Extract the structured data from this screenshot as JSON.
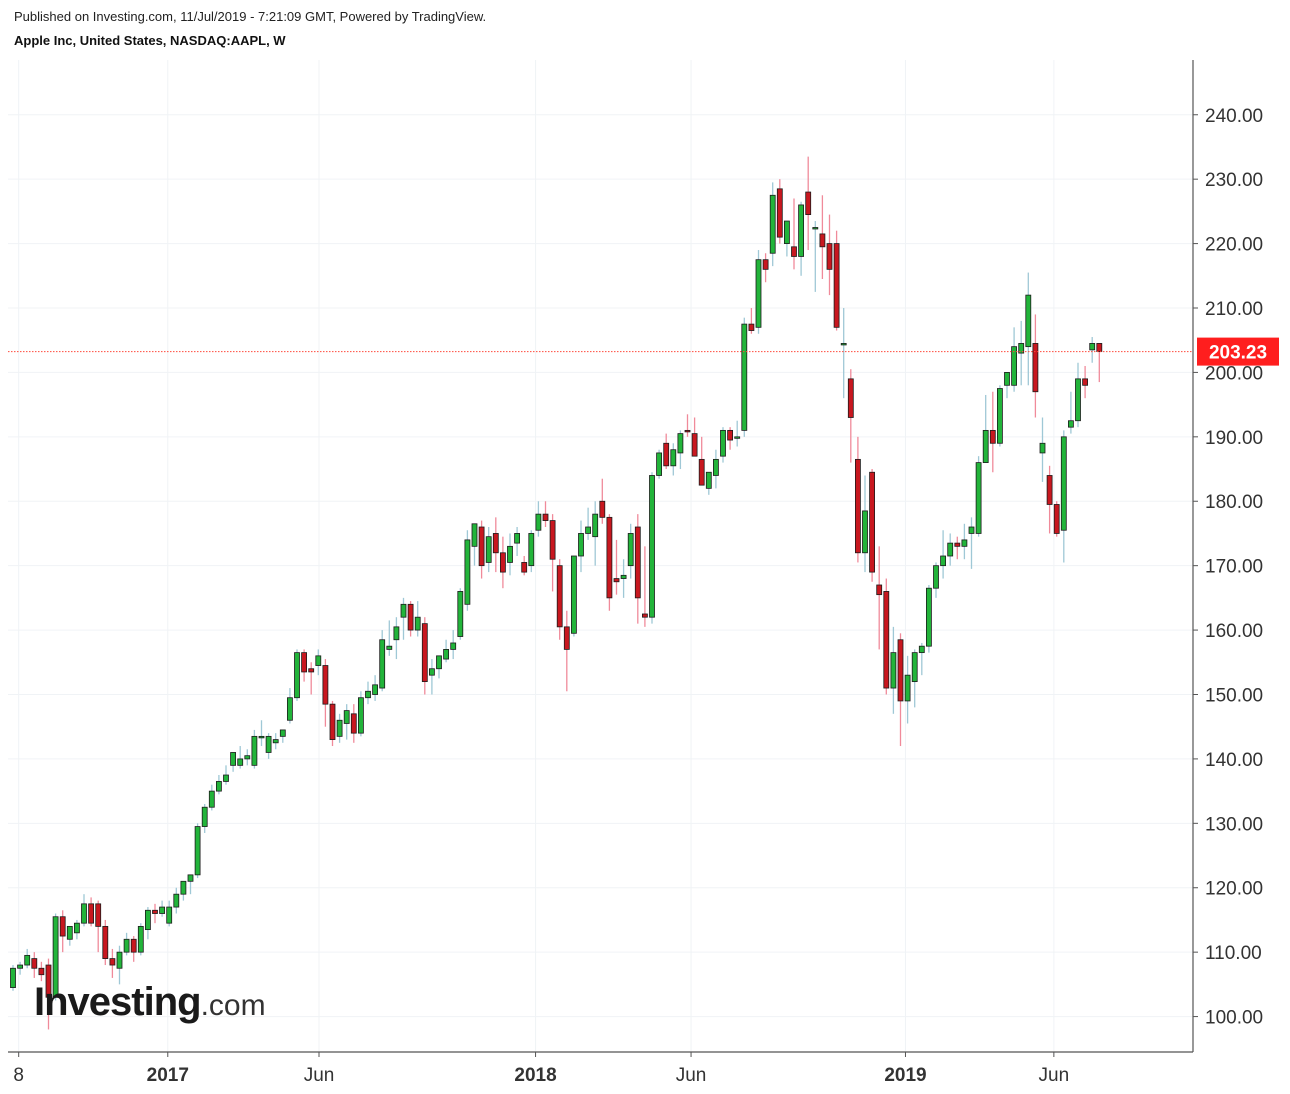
{
  "header": {
    "published": "Published on Investing.com, 11/Jul/2019 - 7:21:09 GMT, Powered by TradingView.",
    "instrument": "Apple Inc, United States, NASDAQ:AAPL, W"
  },
  "brand": {
    "main": "Investing",
    "suffix": ".com"
  },
  "chart_data": {
    "type": "candlestick",
    "timeframe": "W",
    "y_range": [
      94.5,
      248.5
    ],
    "y_ticks": [
      "100.00",
      "110.00",
      "120.00",
      "130.00",
      "140.00",
      "150.00",
      "160.00",
      "170.00",
      "180.00",
      "190.00",
      "200.00",
      "210.00",
      "220.00",
      "230.00",
      "240.00"
    ],
    "x_ticks": [
      {
        "label": "8",
        "bar": 0.8,
        "bold": false
      },
      {
        "label": "2017",
        "bar": 21.8,
        "bold": true
      },
      {
        "label": "Jun",
        "bar": 43.1,
        "bold": false
      },
      {
        "label": "2018",
        "bar": 73.6,
        "bold": true
      },
      {
        "label": "Jun",
        "bar": 95.5,
        "bold": false
      },
      {
        "label": "2019",
        "bar": 125.7,
        "bold": true
      },
      {
        "label": "Jun",
        "bar": 146.6,
        "bold": false
      }
    ],
    "last_price": {
      "value": 203.23,
      "label": "203.23"
    },
    "colors": {
      "up": "#22b43a",
      "down": "#c8171f",
      "up_wick": "#9fc8d6",
      "down_wick": "#f08a9a",
      "price_line": "#ff4a3c",
      "grid": "#f0f3f6"
    },
    "candles": [
      [
        104.5,
        108.0,
        104.0,
        107.5
      ],
      [
        107.5,
        108.5,
        106.5,
        108.0
      ],
      [
        108.0,
        110.5,
        107.5,
        109.5
      ],
      [
        109.0,
        110.0,
        106.0,
        107.5
      ],
      [
        107.5,
        108.5,
        105.5,
        106.5
      ],
      [
        108.0,
        109.0,
        98.0,
        103.0
      ],
      [
        103.0,
        116.0,
        102.5,
        115.5
      ],
      [
        115.5,
        116.5,
        110.0,
        112.5
      ],
      [
        112.0,
        114.0,
        111.0,
        114.0
      ],
      [
        113.0,
        115.0,
        112.0,
        114.5
      ],
      [
        114.5,
        119.0,
        114.0,
        117.5
      ],
      [
        117.5,
        118.5,
        114.0,
        114.5
      ],
      [
        117.5,
        118.0,
        110.0,
        114.0
      ],
      [
        114.0,
        115.0,
        108.0,
        109.0
      ],
      [
        109.0,
        110.5,
        106.0,
        108.0
      ],
      [
        107.5,
        111.0,
        105.0,
        110.0
      ],
      [
        110.0,
        113.0,
        109.5,
        112.0
      ],
      [
        112.0,
        112.5,
        108.5,
        110.0
      ],
      [
        110.0,
        114.5,
        109.5,
        114.0
      ],
      [
        113.5,
        117.0,
        112.0,
        116.5
      ],
      [
        116.5,
        117.5,
        114.5,
        116.0
      ],
      [
        116.0,
        118.0,
        115.5,
        117.0
      ],
      [
        114.5,
        118.0,
        114.0,
        117.0
      ],
      [
        117.0,
        120.0,
        116.0,
        119.0
      ],
      [
        119.0,
        121.0,
        118.0,
        121.0
      ],
      [
        121.0,
        122.0,
        119.0,
        122.0
      ],
      [
        122.0,
        130.0,
        121.5,
        129.5
      ],
      [
        129.5,
        133.0,
        128.5,
        132.5
      ],
      [
        132.5,
        136.0,
        132.0,
        135.0
      ],
      [
        135.0,
        137.5,
        134.5,
        136.5
      ],
      [
        136.5,
        139.0,
        136.0,
        137.5
      ],
      [
        139.0,
        140.5,
        138.0,
        141.0
      ],
      [
        139.0,
        142.0,
        138.5,
        140.0
      ],
      [
        140.0,
        141.5,
        139.0,
        140.5
      ],
      [
        139.0,
        144.5,
        138.5,
        143.5
      ],
      [
        143.5,
        146.0,
        142.0,
        143.5
      ],
      [
        141.0,
        144.0,
        140.0,
        143.5
      ],
      [
        142.5,
        144.0,
        141.5,
        143.0
      ],
      [
        143.5,
        144.5,
        142.5,
        144.5
      ],
      [
        146.0,
        151.0,
        145.5,
        149.5
      ],
      [
        149.5,
        157.0,
        149.0,
        156.5
      ],
      [
        156.5,
        157.0,
        152.0,
        153.5
      ],
      [
        154.0,
        155.0,
        150.0,
        153.5
      ],
      [
        154.5,
        157.0,
        153.0,
        156.0
      ],
      [
        154.5,
        155.5,
        145.0,
        148.5
      ],
      [
        148.5,
        149.0,
        142.0,
        143.0
      ],
      [
        143.5,
        147.0,
        142.5,
        146.0
      ],
      [
        145.5,
        148.5,
        143.0,
        147.5
      ],
      [
        147.0,
        148.5,
        142.5,
        144.0
      ],
      [
        144.0,
        150.5,
        143.5,
        149.5
      ],
      [
        149.5,
        152.0,
        148.5,
        150.5
      ],
      [
        150.0,
        153.0,
        149.0,
        151.5
      ],
      [
        151.0,
        160.0,
        150.5,
        158.5
      ],
      [
        157.0,
        161.5,
        156.0,
        157.5
      ],
      [
        158.5,
        162.0,
        155.5,
        160.5
      ],
      [
        162.0,
        165.0,
        158.5,
        164.0
      ],
      [
        164.0,
        164.5,
        159.0,
        160.0
      ],
      [
        160.0,
        164.5,
        159.0,
        162.0
      ],
      [
        161.0,
        162.0,
        150.0,
        152.0
      ],
      [
        153.0,
        155.5,
        150.0,
        154.0
      ],
      [
        154.0,
        156.0,
        152.5,
        156.0
      ],
      [
        155.5,
        158.5,
        155.0,
        157.0
      ],
      [
        157.0,
        160.0,
        155.5,
        158.0
      ],
      [
        159.0,
        166.5,
        158.5,
        166.0
      ],
      [
        164.0,
        175.5,
        163.0,
        174.0
      ],
      [
        173.0,
        176.0,
        170.0,
        176.5
      ],
      [
        176.0,
        177.0,
        168.0,
        170.0
      ],
      [
        170.5,
        176.0,
        169.0,
        174.5
      ],
      [
        175.0,
        177.5,
        169.0,
        172.0
      ],
      [
        172.0,
        174.5,
        166.5,
        169.0
      ],
      [
        170.5,
        175.0,
        168.5,
        173.0
      ],
      [
        173.5,
        176.0,
        171.5,
        175.0
      ],
      [
        170.5,
        171.5,
        168.5,
        169.0
      ],
      [
        170.0,
        175.5,
        169.0,
        175.0
      ],
      [
        175.5,
        180.0,
        174.5,
        178.0
      ],
      [
        178.0,
        180.0,
        176.0,
        177.0
      ],
      [
        177.0,
        178.0,
        166.0,
        171.0
      ],
      [
        170.0,
        171.0,
        158.5,
        160.5
      ],
      [
        160.5,
        163.0,
        150.5,
        157.0
      ],
      [
        159.5,
        171.5,
        159.0,
        171.5
      ],
      [
        171.5,
        177.0,
        169.0,
        175.0
      ],
      [
        175.0,
        179.0,
        174.0,
        176.0
      ],
      [
        174.5,
        180.0,
        170.0,
        178.0
      ],
      [
        180.0,
        183.5,
        176.5,
        177.5
      ],
      [
        177.5,
        178.0,
        163.0,
        165.0
      ],
      [
        168.0,
        174.0,
        165.5,
        167.5
      ],
      [
        168.0,
        171.0,
        165.0,
        168.5
      ],
      [
        170.0,
        176.5,
        168.0,
        175.0
      ],
      [
        176.0,
        178.0,
        161.0,
        165.0
      ],
      [
        162.5,
        173.0,
        160.5,
        162.0
      ],
      [
        162.0,
        184.5,
        161.0,
        184.0
      ],
      [
        184.0,
        188.0,
        183.5,
        187.5
      ],
      [
        189.0,
        190.5,
        185.0,
        185.5
      ],
      [
        185.5,
        189.0,
        184.0,
        188.0
      ],
      [
        187.5,
        191.0,
        185.0,
        190.5
      ],
      [
        191.0,
        193.5,
        190.0,
        190.8
      ],
      [
        190.5,
        193.0,
        187.0,
        187.0
      ],
      [
        186.5,
        190.0,
        183.0,
        182.5
      ],
      [
        182.0,
        184.0,
        181.0,
        184.5
      ],
      [
        184.0,
        188.0,
        182.0,
        186.5
      ],
      [
        187.0,
        191.5,
        186.0,
        191.0
      ],
      [
        191.0,
        191.5,
        188.0,
        189.5
      ],
      [
        190.0,
        192.5,
        188.5,
        190.0
      ],
      [
        191.0,
        208.5,
        190.0,
        207.5
      ],
      [
        207.5,
        210.0,
        206.0,
        206.5
      ],
      [
        207.0,
        219.0,
        206.0,
        217.5
      ],
      [
        217.5,
        218.5,
        214.0,
        216.0
      ],
      [
        218.5,
        229.5,
        216.5,
        227.5
      ],
      [
        228.5,
        230.0,
        220.0,
        221.0
      ],
      [
        220.0,
        223.0,
        218.0,
        223.5
      ],
      [
        219.5,
        227.0,
        216.0,
        218.0
      ],
      [
        218.0,
        226.5,
        215.0,
        226.0
      ],
      [
        228.0,
        233.5,
        219.0,
        224.5
      ],
      [
        222.5,
        223.5,
        212.5,
        222.5
      ],
      [
        221.5,
        227.5,
        214.5,
        219.5
      ],
      [
        220.0,
        224.5,
        212.0,
        216.0
      ],
      [
        220.0,
        222.0,
        206.5,
        207.0
      ],
      [
        204.5,
        210.0,
        196.0,
        204.5
      ],
      [
        199.0,
        200.5,
        186.0,
        193.0
      ],
      [
        186.5,
        190.0,
        170.5,
        172.0
      ],
      [
        172.0,
        184.0,
        169.0,
        178.5
      ],
      [
        184.5,
        185.0,
        167.5,
        169.0
      ],
      [
        167.0,
        173.0,
        157.0,
        165.5
      ],
      [
        166.0,
        168.0,
        150.0,
        151.0
      ],
      [
        151.0,
        160.5,
        147.0,
        156.5
      ],
      [
        158.5,
        159.5,
        142.0,
        149.0
      ],
      [
        149.0,
        156.0,
        145.5,
        153.0
      ],
      [
        152.0,
        157.0,
        148.0,
        156.5
      ],
      [
        156.5,
        158.0,
        153.0,
        157.5
      ],
      [
        157.5,
        167.0,
        156.5,
        166.5
      ],
      [
        166.5,
        170.5,
        165.0,
        170.0
      ],
      [
        170.0,
        175.5,
        168.0,
        171.5
      ],
      [
        171.5,
        175.0,
        170.0,
        173.5
      ],
      [
        173.5,
        174.5,
        171.0,
        173.0
      ],
      [
        173.0,
        176.5,
        171.0,
        174.0
      ],
      [
        175.0,
        177.5,
        169.5,
        176.0
      ],
      [
        175.0,
        187.0,
        174.5,
        186.0
      ],
      [
        186.0,
        196.5,
        186.0,
        191.0
      ],
      [
        191.0,
        197.0,
        184.5,
        189.0
      ],
      [
        189.0,
        198.0,
        188.5,
        197.5
      ],
      [
        198.0,
        200.0,
        196.0,
        200.0
      ],
      [
        198.0,
        207.0,
        197.0,
        204.0
      ],
      [
        203.0,
        208.0,
        198.0,
        204.5
      ],
      [
        204.0,
        215.5,
        198.0,
        212.0
      ],
      [
        204.5,
        209.0,
        193.0,
        197.0
      ],
      [
        187.5,
        193.0,
        183.0,
        189.0
      ],
      [
        184.0,
        185.5,
        175.0,
        179.5
      ],
      [
        179.5,
        180.0,
        174.5,
        175.0
      ],
      [
        175.5,
        191.0,
        170.5,
        190.0
      ],
      [
        191.5,
        197.0,
        190.5,
        192.5
      ],
      [
        192.5,
        201.5,
        191.5,
        199.0
      ],
      [
        199.0,
        201.0,
        196.0,
        198.0
      ],
      [
        203.5,
        205.5,
        201.5,
        204.5
      ],
      [
        204.5,
        204.5,
        198.5,
        203.23
      ]
    ]
  }
}
